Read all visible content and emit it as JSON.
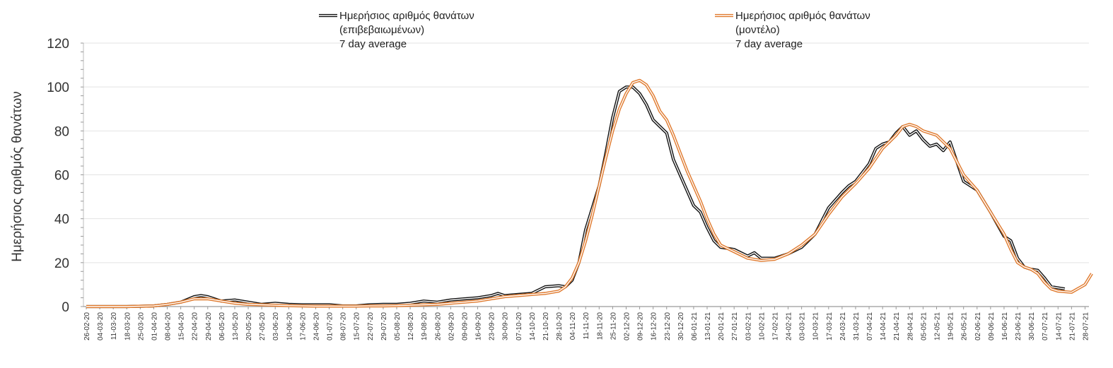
{
  "chart_data": {
    "type": "line",
    "title": "",
    "xlabel": "",
    "ylabel": "Ημερήσιος αριθμός θανάτων",
    "ylim": [
      0,
      120
    ],
    "yticks": [
      "0",
      "20",
      "40",
      "60",
      "80",
      "100",
      "120"
    ],
    "grid": true,
    "legend_position": "top",
    "x_tick_labels": [
      "26-02-20",
      "04-03-20",
      "11-03-20",
      "18-03-20",
      "25-03-20",
      "01-04-20",
      "08-04-20",
      "15-04-20",
      "22-04-20",
      "29-04-20",
      "06-05-20",
      "13-05-20",
      "20-05-20",
      "27-05-20",
      "03-06-20",
      "10-06-20",
      "17-06-20",
      "24-06-20",
      "01-07-20",
      "08-07-20",
      "15-07-20",
      "22-07-20",
      "29-07-20",
      "05-08-20",
      "12-08-20",
      "19-08-20",
      "26-08-20",
      "02-09-20",
      "09-09-20",
      "16-09-20",
      "23-09-20",
      "30-09-20",
      "07-10-20",
      "14-10-20",
      "21-10-20",
      "28-10-20",
      "04-11-20",
      "11-11-20",
      "18-11-20",
      "25-11-20",
      "02-12-20",
      "09-12-20",
      "16-12-20",
      "23-12-20",
      "30-12-20",
      "06-01-21",
      "13-01-21",
      "20-01-21",
      "27-01-21",
      "03-02-21",
      "10-02-21",
      "17-02-21",
      "24-02-21",
      "03-03-21",
      "10-03-21",
      "17-03-21",
      "24-03-21",
      "31-03-21",
      "07-04-21",
      "14-04-21",
      "21-04-21",
      "28-04-21",
      "05-05-21",
      "12-05-21",
      "19-05-21",
      "26-05-21",
      "02-06-21",
      "09-06-21",
      "16-06-21",
      "23-06-21",
      "30-06-21",
      "07-07-21",
      "14-07-21",
      "21-07-21",
      "28-07-21"
    ],
    "series": [
      {
        "name": "Ημερήσιος αριθμός θανάτων (επιβεβαιωμένων) 7 day average",
        "legend_lines": [
          "Ημερήσιος αριθμός θανάτων",
          "(επιβεβαιωμένων)",
          "7 day average"
        ],
        "color": "#111111",
        "style": "double-line",
        "points": [
          [
            0,
            0
          ],
          [
            3,
            0
          ],
          [
            5,
            0.3
          ],
          [
            6,
            1
          ],
          [
            7,
            2
          ],
          [
            8,
            4.5
          ],
          [
            8.5,
            5
          ],
          [
            9,
            4.5
          ],
          [
            10,
            2.5
          ],
          [
            11,
            3
          ],
          [
            12,
            2
          ],
          [
            13,
            1
          ],
          [
            14,
            1.5
          ],
          [
            15,
            1
          ],
          [
            16,
            0.8
          ],
          [
            17,
            0.8
          ],
          [
            18,
            0.8
          ],
          [
            19,
            0.3
          ],
          [
            20,
            0.3
          ],
          [
            21,
            0.8
          ],
          [
            22,
            1
          ],
          [
            23,
            1
          ],
          [
            24,
            1.5
          ],
          [
            25,
            2.5
          ],
          [
            26,
            2
          ],
          [
            27,
            3
          ],
          [
            28,
            3.5
          ],
          [
            29,
            4
          ],
          [
            30,
            5
          ],
          [
            30.5,
            6
          ],
          [
            31,
            5
          ],
          [
            32,
            5.5
          ],
          [
            33,
            6
          ],
          [
            34,
            9
          ],
          [
            35,
            9.5
          ],
          [
            35.5,
            9
          ],
          [
            36,
            12
          ],
          [
            36.5,
            20
          ],
          [
            37,
            35
          ],
          [
            37.5,
            45
          ],
          [
            38,
            55
          ],
          [
            38.5,
            70
          ],
          [
            39,
            86
          ],
          [
            39.5,
            98
          ],
          [
            40,
            100
          ],
          [
            40.5,
            100
          ],
          [
            41,
            97
          ],
          [
            41.5,
            92
          ],
          [
            42,
            85
          ],
          [
            42.5,
            82
          ],
          [
            43,
            79
          ],
          [
            43.5,
            67
          ],
          [
            44,
            60
          ],
          [
            44.5,
            53
          ],
          [
            45,
            46
          ],
          [
            45.5,
            43
          ],
          [
            46,
            36
          ],
          [
            46.5,
            30
          ],
          [
            47,
            27
          ],
          [
            48,
            26
          ],
          [
            49,
            23
          ],
          [
            49.5,
            24.5
          ],
          [
            50,
            22
          ],
          [
            51,
            22
          ],
          [
            52,
            24
          ],
          [
            53,
            27
          ],
          [
            53.5,
            30
          ],
          [
            54,
            33
          ],
          [
            55,
            45
          ],
          [
            56,
            52
          ],
          [
            56.5,
            55
          ],
          [
            57,
            57
          ],
          [
            58,
            65
          ],
          [
            58.5,
            72
          ],
          [
            59,
            74
          ],
          [
            59.5,
            75
          ],
          [
            60,
            79
          ],
          [
            60.5,
            82
          ],
          [
            61,
            78
          ],
          [
            61.5,
            80
          ],
          [
            62,
            76
          ],
          [
            62.5,
            73
          ],
          [
            63,
            74
          ],
          [
            63.5,
            71
          ],
          [
            64,
            75
          ],
          [
            65,
            57
          ],
          [
            66,
            53
          ],
          [
            67,
            43
          ],
          [
            68,
            32
          ],
          [
            68.5,
            30
          ],
          [
            69,
            22
          ],
          [
            69.5,
            18
          ],
          [
            70,
            17
          ],
          [
            70.5,
            16.5
          ],
          [
            71,
            13
          ],
          [
            71.5,
            9
          ],
          [
            72,
            8.5
          ],
          [
            72.5,
            8
          ]
        ]
      },
      {
        "name": "Ημερήσιος αριθμός θανάτων (μοντέλο) 7 day average",
        "legend_lines": [
          "Ημερήσιος αριθμός θανάτων",
          "(μοντέλο)",
          "7 day average"
        ],
        "color": "#e07a2e",
        "style": "double-line",
        "points": [
          [
            0,
            0
          ],
          [
            3,
            0
          ],
          [
            5,
            0.3
          ],
          [
            6,
            1
          ],
          [
            7,
            2
          ],
          [
            8,
            3.5
          ],
          [
            9,
            3.5
          ],
          [
            10,
            2.5
          ],
          [
            11,
            1.5
          ],
          [
            12,
            1
          ],
          [
            13,
            0.8
          ],
          [
            14,
            0.6
          ],
          [
            15,
            0.4
          ],
          [
            16,
            0.3
          ],
          [
            17,
            0.2
          ],
          [
            18,
            0.2
          ],
          [
            19,
            0.2
          ],
          [
            20,
            0.2
          ],
          [
            21,
            0.3
          ],
          [
            22,
            0.3
          ],
          [
            23,
            0.4
          ],
          [
            24,
            0.6
          ],
          [
            25,
            0.8
          ],
          [
            26,
            1
          ],
          [
            27,
            1.5
          ],
          [
            28,
            2
          ],
          [
            29,
            2.5
          ],
          [
            30,
            3.5
          ],
          [
            31,
            4.5
          ],
          [
            32,
            5
          ],
          [
            33,
            5.5
          ],
          [
            34,
            6
          ],
          [
            35,
            7
          ],
          [
            35.5,
            9
          ],
          [
            36,
            13
          ],
          [
            36.5,
            20
          ],
          [
            37,
            30
          ],
          [
            37.5,
            42
          ],
          [
            38,
            55
          ],
          [
            38.5,
            68
          ],
          [
            39,
            80
          ],
          [
            39.5,
            90
          ],
          [
            40,
            97
          ],
          [
            40.5,
            102
          ],
          [
            41,
            103
          ],
          [
            41.5,
            101
          ],
          [
            42,
            96
          ],
          [
            42.5,
            89
          ],
          [
            43,
            85
          ],
          [
            43.5,
            78
          ],
          [
            44,
            70
          ],
          [
            44.5,
            62
          ],
          [
            45,
            55
          ],
          [
            45.5,
            48
          ],
          [
            46,
            40
          ],
          [
            46.5,
            33
          ],
          [
            47,
            28
          ],
          [
            48,
            25
          ],
          [
            49,
            22
          ],
          [
            50,
            21
          ],
          [
            51,
            21.5
          ],
          [
            52,
            24
          ],
          [
            53,
            28
          ],
          [
            54,
            33
          ],
          [
            55,
            42
          ],
          [
            56,
            50
          ],
          [
            57,
            56
          ],
          [
            58,
            63
          ],
          [
            59,
            72
          ],
          [
            60,
            78
          ],
          [
            60.5,
            82
          ],
          [
            61,
            83
          ],
          [
            61.5,
            82
          ],
          [
            62,
            80
          ],
          [
            63,
            78
          ],
          [
            64,
            72
          ],
          [
            65,
            60
          ],
          [
            66,
            53
          ],
          [
            67,
            43
          ],
          [
            68,
            33
          ],
          [
            68.5,
            26
          ],
          [
            69,
            20
          ],
          [
            69.5,
            18
          ],
          [
            70,
            17
          ],
          [
            70.5,
            15
          ],
          [
            71,
            11
          ],
          [
            71.5,
            8
          ],
          [
            72,
            7
          ],
          [
            73,
            6.5
          ],
          [
            74,
            10
          ],
          [
            74.5,
            15
          ]
        ]
      }
    ]
  }
}
